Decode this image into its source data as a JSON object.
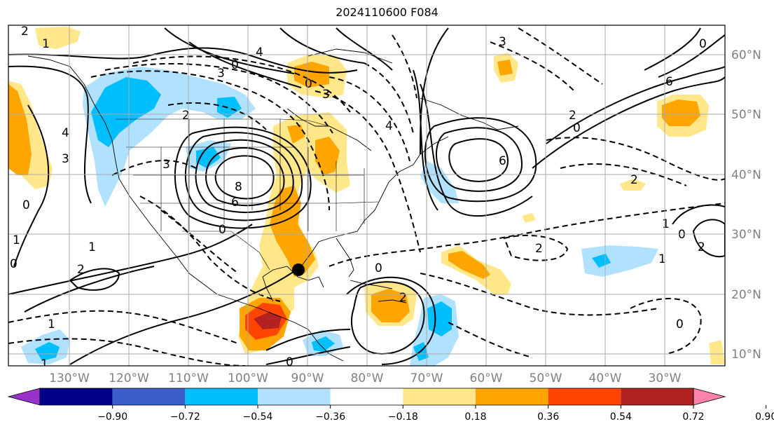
{
  "title": "2024110600 F084",
  "lat_labels": [
    "60°N",
    "50°N",
    "40°N",
    "30°N",
    "20°N",
    "10°N"
  ],
  "lon_labels": [
    "130°W",
    "120°W",
    "110°W",
    "100°W",
    "90°W",
    "80°W",
    "70°W",
    "60°W",
    "50°W",
    "40°W",
    "30°W"
  ],
  "colorbar": {
    "colors": [
      "#9932CC",
      "#00008B",
      "#3A5FCD",
      "#00BFFF",
      "#B0E2FF",
      "#FFFFFF",
      "#FFE78A",
      "#FFA500",
      "#FF4500",
      "#B22222",
      "#FF82AB"
    ],
    "tick_labels": [
      "−0.90",
      "−0.72",
      "−0.54",
      "−0.36",
      "−0.18",
      "0.18",
      "0.36",
      "0.54",
      "0.72",
      "0.90"
    ]
  },
  "contour_labels": [
    "2",
    "1",
    "0",
    "3",
    "0",
    "3",
    "2",
    "4",
    "3",
    "3",
    "0",
    "6",
    "2",
    "0",
    "4",
    "3",
    "8",
    "6",
    "0",
    "1",
    "2",
    "1",
    "0",
    "0",
    "1",
    "0",
    "6",
    "2",
    "0",
    "2",
    "1",
    "0",
    "2",
    "4",
    "2",
    "0",
    "1",
    "1"
  ],
  "colors": {
    "contour": "#000000",
    "grid": "#A9A9A9",
    "coast": "#000000",
    "marker": "#000000"
  }
}
